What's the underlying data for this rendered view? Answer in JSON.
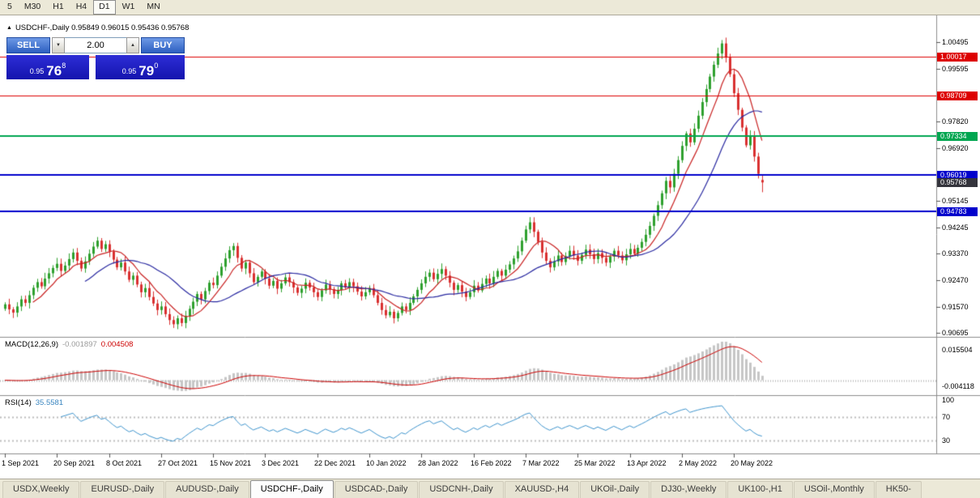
{
  "toolbar": {
    "timeframes": [
      {
        "label": "5",
        "active": false
      },
      {
        "label": "M30",
        "active": false
      },
      {
        "label": "H1",
        "active": false
      },
      {
        "label": "H4",
        "active": false
      },
      {
        "label": "D1",
        "active": true
      },
      {
        "label": "W1",
        "active": false
      },
      {
        "label": "MN",
        "active": false
      }
    ]
  },
  "chart_header": {
    "collapse_icon": "▲",
    "title": "USDCHF-,Daily  0.95849 0.96015 0.95436 0.95768"
  },
  "trade_panel": {
    "sell_label": "SELL",
    "buy_label": "BUY",
    "volume": "2.00",
    "down_arrow": "▼",
    "up_arrow": "▲",
    "sell_price": {
      "small": "0.95",
      "big": "76",
      "sup": "8"
    },
    "buy_price": {
      "small": "0.95",
      "big": "79",
      "sup": "0"
    }
  },
  "indicators": {
    "macd": {
      "label": "MACD(12,26,9)",
      "value1": "-0.001897",
      "value2": "0.004508",
      "fast": 12,
      "slow": 26,
      "signal": 9,
      "axis_labels": [
        "0.015504",
        "-0.004118"
      ]
    },
    "rsi": {
      "label": "RSI(14)",
      "value": "35.5581",
      "period": 14,
      "axis_labels": [
        "100",
        "70",
        "30"
      ],
      "axis_values": [
        100,
        70,
        30
      ],
      "levels": [
        70,
        30
      ]
    }
  },
  "price_axis": {
    "labels": [
      {
        "text": "1.00495",
        "value": 1.00495,
        "style": "plain"
      },
      {
        "text": "1.00017",
        "value": 1.00017,
        "style": "red"
      },
      {
        "text": "0.99595",
        "value": 0.99595,
        "style": "plain"
      },
      {
        "text": "0.98709",
        "value": 0.98709,
        "style": "red"
      },
      {
        "text": "0.97820",
        "value": 0.9782,
        "style": "plain"
      },
      {
        "text": "0.97334",
        "value": 0.97334,
        "style": "green"
      },
      {
        "text": "0.96920",
        "value": 0.9692,
        "style": "plain"
      },
      {
        "text": "0.96019",
        "value": 0.96019,
        "style": "blue"
      },
      {
        "text": "0.95768",
        "value": 0.95768,
        "style": "current"
      },
      {
        "text": "0.95145",
        "value": 0.95145,
        "style": "plain"
      },
      {
        "text": "0.94783",
        "value": 0.94783,
        "style": "blue"
      },
      {
        "text": "0.94245",
        "value": 0.94245,
        "style": "plain"
      },
      {
        "text": "0.93370",
        "value": 0.9337,
        "style": "plain"
      },
      {
        "text": "0.92470",
        "value": 0.9247,
        "style": "plain"
      },
      {
        "text": "0.91570",
        "value": 0.9157,
        "style": "plain"
      },
      {
        "text": "0.90695",
        "value": 0.90695,
        "style": "plain"
      }
    ]
  },
  "date_axis": {
    "ticks": [
      {
        "label": "1 Sep 2021",
        "day": 0
      },
      {
        "label": "20 Sep 2021",
        "day": 13
      },
      {
        "label": "8 Oct 2021",
        "day": 26
      },
      {
        "label": "27 Oct 2021",
        "day": 39
      },
      {
        "label": "15 Nov 2021",
        "day": 52
      },
      {
        "label": "3 Dec 2021",
        "day": 65
      },
      {
        "label": "22 Dec 2021",
        "day": 78
      },
      {
        "label": "10 Jan 2022",
        "day": 91
      },
      {
        "label": "28 Jan 2022",
        "day": 104
      },
      {
        "label": "16 Feb 2022",
        "day": 117
      },
      {
        "label": "7 Mar 2022",
        "day": 130
      },
      {
        "label": "25 Mar 2022",
        "day": 143
      },
      {
        "label": "13 Apr 2022",
        "day": 156
      },
      {
        "label": "2 May 2022",
        "day": 169
      },
      {
        "label": "20 May 2022",
        "day": 182
      }
    ]
  },
  "tab_bar": {
    "tabs": [
      {
        "label": "USDX,Weekly",
        "active": false
      },
      {
        "label": "EURUSD-,Daily",
        "active": false
      },
      {
        "label": "AUDUSD-,Daily",
        "active": false
      },
      {
        "label": "USDCHF-,Daily",
        "active": true
      },
      {
        "label": "USDCAD-,Daily",
        "active": false
      },
      {
        "label": "USDCNH-,Daily",
        "active": false
      },
      {
        "label": "XAUUSD-,H4",
        "active": false
      },
      {
        "label": "UKOil-,Daily",
        "active": false
      },
      {
        "label": "DJ30-,Weekly",
        "active": false
      },
      {
        "label": "UK100-,H1",
        "active": false
      },
      {
        "label": "USOil-,Monthly",
        "active": false
      },
      {
        "label": "HK50-",
        "active": false
      }
    ]
  },
  "colors": {
    "bull": "#2ea02e",
    "bear": "#d93030",
    "ma_fast": "#c82020",
    "ma_slow": "#2828a0",
    "macd_hist": "#c6c6c6",
    "macd_signal": "#cc0000",
    "rsi_line": "#3d93cc",
    "level_red": "#dd0000",
    "level_green": "#00a650",
    "level_blue": "#0000cc",
    "current_price_bg": "#34343c"
  },
  "chart_data": {
    "type": "candlestick",
    "symbol": "USDCHF-",
    "timeframe": "Daily",
    "ohlc": {
      "open": 0.95849,
      "high": 0.96015,
      "low": 0.95436,
      "close": 0.95768
    },
    "current_price": 0.95768,
    "price_range": [
      0.9058,
      1.0138
    ],
    "hlines": [
      {
        "value": 1.00017,
        "color": "level_red",
        "width": 1
      },
      {
        "value": 0.98709,
        "color": "level_red",
        "width": 1
      },
      {
        "value": 0.97334,
        "color": "level_green",
        "width": 2
      },
      {
        "value": 0.96019,
        "color": "level_blue",
        "width": 2
      },
      {
        "value": 0.94783,
        "color": "level_blue",
        "width": 2
      }
    ],
    "moving_averages": [
      {
        "name": "fast",
        "period": 8,
        "color": "ma_fast"
      },
      {
        "name": "slow",
        "period": 21,
        "color": "ma_slow"
      }
    ],
    "last_candle": {
      "open": 0.95849,
      "high": 0.96015,
      "low": 0.95436,
      "close": 0.95768
    },
    "closes": [
      0.9165,
      0.9148,
      0.9137,
      0.9158,
      0.9182,
      0.917,
      0.9196,
      0.9221,
      0.924,
      0.9226,
      0.9252,
      0.927,
      0.9288,
      0.9302,
      0.9278,
      0.9296,
      0.9318,
      0.934,
      0.9312,
      0.9286,
      0.931,
      0.9336,
      0.936,
      0.938,
      0.9352,
      0.9368,
      0.9344,
      0.9316,
      0.929,
      0.9306,
      0.9276,
      0.9248,
      0.9262,
      0.9232,
      0.9206,
      0.922,
      0.919,
      0.9168,
      0.9146,
      0.9158,
      0.9132,
      0.9112,
      0.9098,
      0.9118,
      0.9102,
      0.9126,
      0.915,
      0.9174,
      0.92,
      0.9182,
      0.921,
      0.9238,
      0.923,
      0.9262,
      0.9292,
      0.932,
      0.9348,
      0.9362,
      0.9322,
      0.9286,
      0.9306,
      0.927,
      0.924,
      0.9258,
      0.9276,
      0.9252,
      0.9228,
      0.9244,
      0.9218,
      0.9236,
      0.9256,
      0.924,
      0.9222,
      0.9204,
      0.9218,
      0.9238,
      0.9222,
      0.9206,
      0.919,
      0.9212,
      0.9232,
      0.9216,
      0.92,
      0.9214,
      0.9236,
      0.9222,
      0.924,
      0.9226,
      0.9208,
      0.9192,
      0.9206,
      0.922,
      0.9196,
      0.917,
      0.9146,
      0.9128,
      0.914,
      0.9118,
      0.9136,
      0.9158,
      0.9146,
      0.917,
      0.9192,
      0.9214,
      0.9236,
      0.9258,
      0.9272,
      0.925,
      0.9268,
      0.9284,
      0.9262,
      0.9238,
      0.9214,
      0.923,
      0.9208,
      0.919,
      0.9206,
      0.9228,
      0.9212,
      0.9234,
      0.9252,
      0.9236,
      0.9258,
      0.9278,
      0.9262,
      0.9282,
      0.93,
      0.932,
      0.9344,
      0.938,
      0.9418,
      0.9442,
      0.941,
      0.9376,
      0.934,
      0.9312,
      0.929,
      0.931,
      0.933,
      0.9308,
      0.9328,
      0.9346,
      0.933,
      0.9312,
      0.9332,
      0.935,
      0.9334,
      0.9318,
      0.9338,
      0.9322,
      0.9306,
      0.9326,
      0.9346,
      0.933,
      0.9314,
      0.9334,
      0.9352,
      0.9336,
      0.9356,
      0.9376,
      0.94,
      0.943,
      0.9464,
      0.95,
      0.954,
      0.9582,
      0.956,
      0.9606,
      0.9652,
      0.97,
      0.9742,
      0.9712,
      0.9758,
      0.9802,
      0.9848,
      0.9892,
      0.9934,
      0.9974,
      1.0012,
      1.0046,
      0.9998,
      0.9942,
      0.9878,
      0.9822,
      0.9762,
      0.9702,
      0.9734,
      0.9664,
      0.9606,
      0.9577
    ]
  }
}
